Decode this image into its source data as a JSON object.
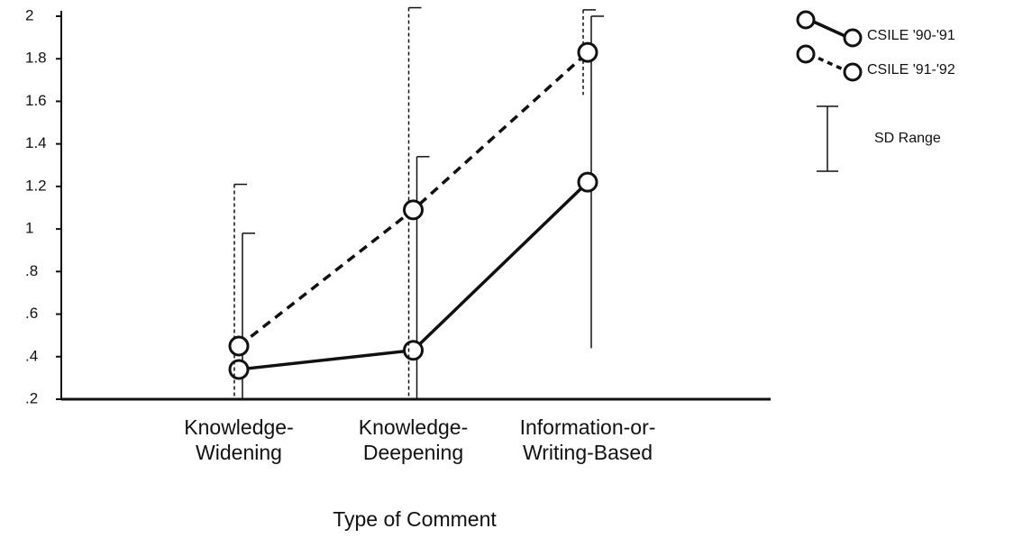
{
  "chart_data": {
    "type": "line",
    "x_label": "Type of Comment",
    "categories": [
      [
        "Knowledge-",
        "Widening"
      ],
      [
        "Knowledge-",
        "Deepening"
      ],
      [
        "Information-or-",
        "Writing-Based"
      ]
    ],
    "series": [
      {
        "name": "CSILE '90-'91",
        "color": "#111111",
        "dash": false,
        "values": [
          0.34,
          0.43,
          1.22
        ],
        "errors": [
          0.64,
          0.91,
          0.78
        ]
      },
      {
        "name": "CSILE '91-'92",
        "color": "#111111",
        "dash": true,
        "values": [
          0.45,
          1.09,
          1.83
        ],
        "errors": [
          0.76,
          0.95,
          0.2
        ]
      }
    ],
    "error_label": "SD Range",
    "ylim": [
      0.2,
      2
    ],
    "yticks": [
      {
        "value": 0.2,
        "label": ".2"
      },
      {
        "value": 0.4,
        "label": ".4"
      },
      {
        "value": 0.6,
        "label": ".6"
      },
      {
        "value": 0.8,
        "label": ".8"
      },
      1,
      1.2,
      1.4,
      1.6,
      1.8,
      2
    ]
  }
}
